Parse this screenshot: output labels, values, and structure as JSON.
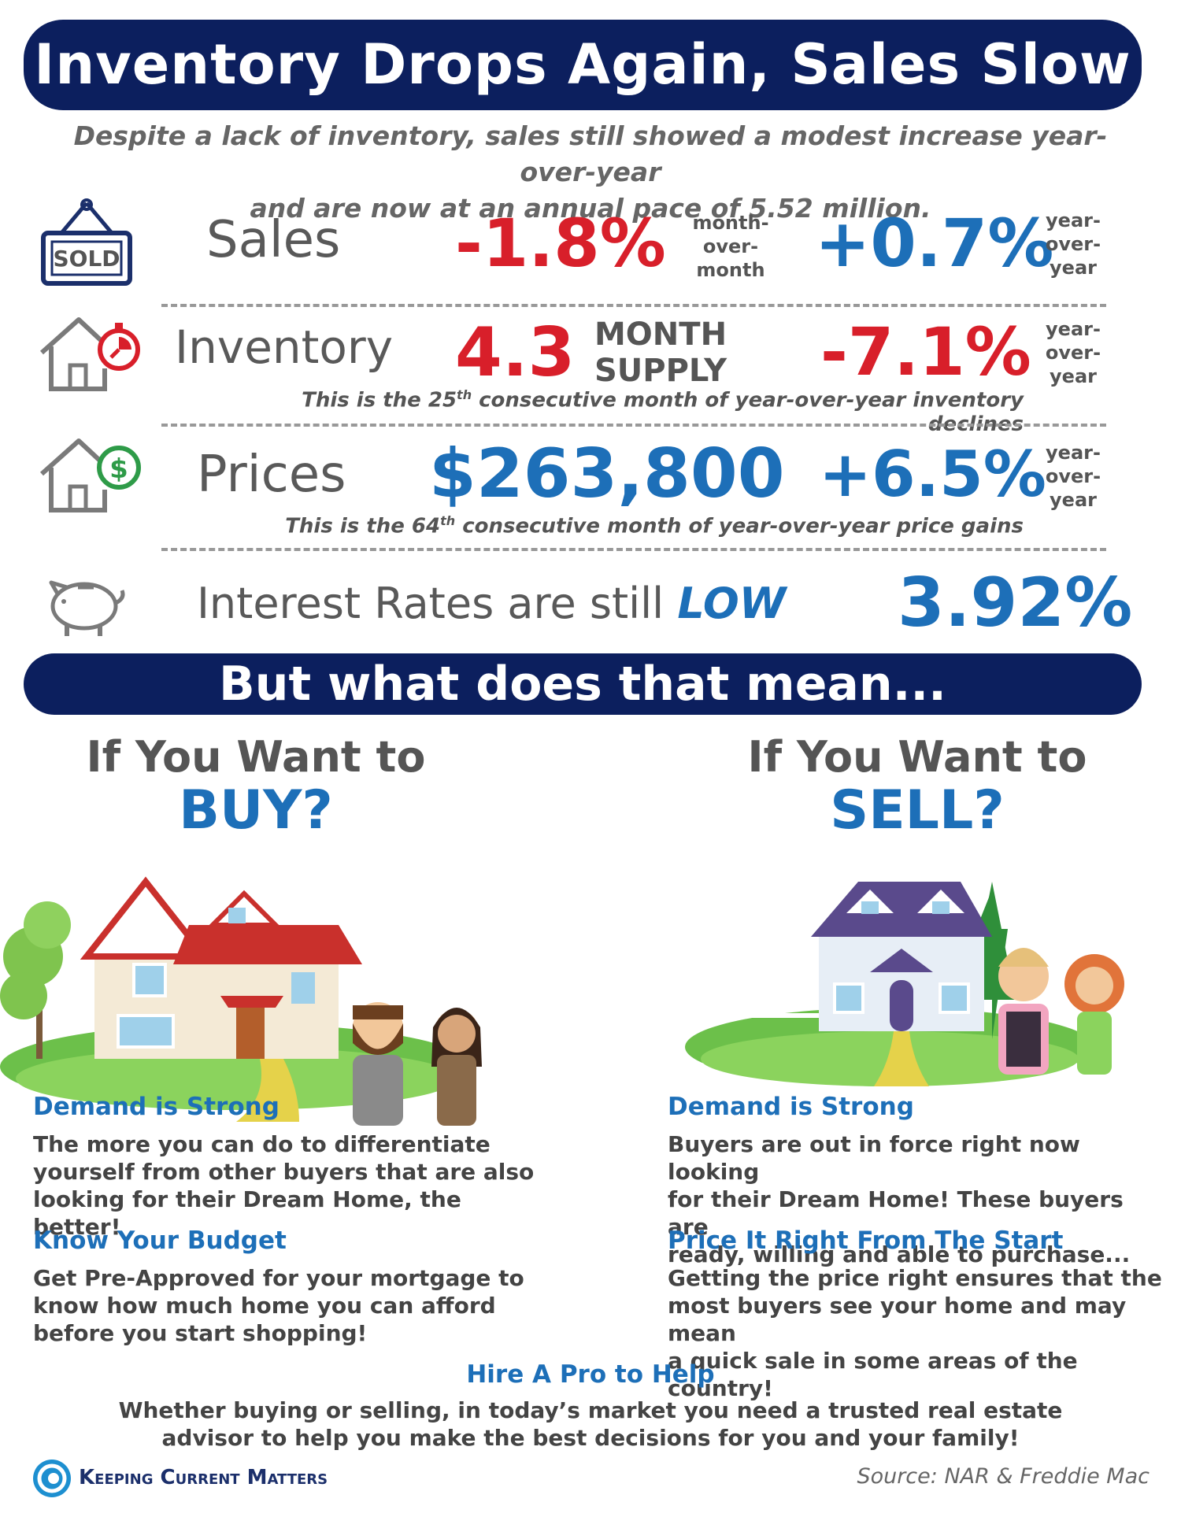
{
  "title": "Inventory Drops Again, Sales Slow",
  "subtitle_line1": "Despite a lack of inventory, sales still showed a modest increase year-over-year",
  "subtitle_line2": "and are now at an annual pace of 5.52 million.",
  "sales": {
    "sign_text": "SOLD",
    "label": "Sales",
    "mom_value": "-1.8%",
    "mom_caption": [
      "month-",
      "over-",
      "month"
    ],
    "yoy_value": "+0.7%",
    "yoy_caption": [
      "year-",
      "over-",
      "year"
    ]
  },
  "inventory": {
    "label": "Inventory",
    "supply_value": "4.3",
    "supply_caption": [
      "MONTH",
      "SUPPLY"
    ],
    "yoy_value": "-7.1%",
    "yoy_caption": [
      "year-",
      "over-",
      "year"
    ],
    "note_pre": "This is the 25",
    "note_sup": "th",
    "note_post": " consecutive month of year-over-year inventory declines"
  },
  "prices": {
    "label": "Prices",
    "price_value": "$263,800",
    "yoy_value": "+6.5%",
    "yoy_caption": [
      "year-",
      "over-",
      "year"
    ],
    "note_pre": "This is the 64",
    "note_sup": "th",
    "note_post": " consecutive month of year-over-year price gains"
  },
  "rates": {
    "label": "Interest Rates are still ",
    "label_emphasis": "LOW",
    "value": "3.92%"
  },
  "mean_banner": "But what does that mean...",
  "buy": {
    "heading": "If You Want to",
    "big": "BUY?",
    "sections": [
      {
        "title": "Demand is Strong",
        "lines": [
          "The more you can do to differentiate",
          "yourself from other buyers that are also",
          "looking for their Dream Home, the better!"
        ]
      },
      {
        "title": "Know Your Budget",
        "lines": [
          "Get Pre-Approved for your mortgage to",
          "know how much home you can afford",
          "before you start shopping!"
        ]
      }
    ]
  },
  "sell": {
    "heading": "If You Want to",
    "big": "SELL?",
    "sections": [
      {
        "title": "Demand is Strong",
        "lines": [
          "Buyers are out in force right now looking",
          "for their Dream Home! These buyers are",
          "ready, willing and able to purchase..."
        ]
      },
      {
        "title": "Price It Right From The Start",
        "lines": [
          "Getting the price right ensures that the",
          "most buyers see your home and may mean",
          "a quick sale in some areas of the country!"
        ]
      }
    ]
  },
  "pro": {
    "title": "Hire A Pro to Help",
    "lines": [
      "Whether buying or selling, in today’s market you need a trusted real estate",
      "advisor to help you make the best decisions for you and your family!"
    ]
  },
  "footer": {
    "brand": "Keeping Current Matters",
    "source": "Source: NAR & Freddie Mac"
  },
  "icons": [
    "sold-sign-icon",
    "house-timer-icon",
    "house-dollar-icon",
    "piggy-bank-icon",
    "kcm-logo-icon"
  ],
  "colors": {
    "navy": "#0c1f5e",
    "red": "#d81f2a",
    "blue": "#1d6fb8",
    "gray": "#555555"
  }
}
